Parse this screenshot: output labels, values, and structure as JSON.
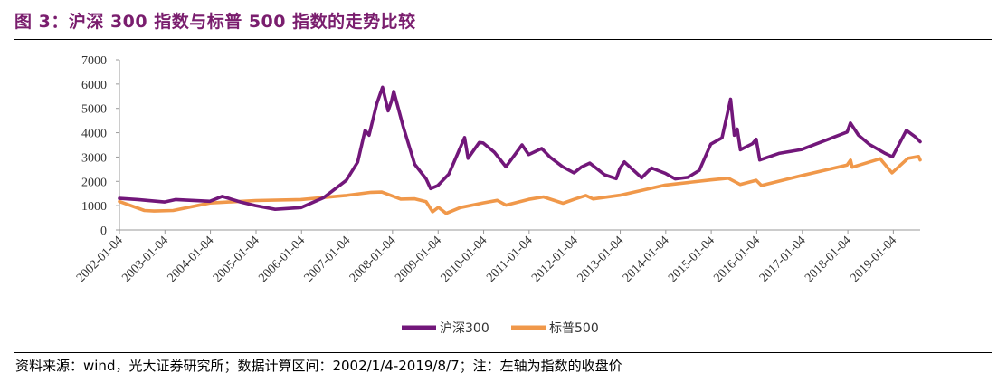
{
  "figure": {
    "title": "图 3：沪深 300 指数与标普 500 指数的走势比较",
    "source": "资料来源：wind，光大证券研究所；数据计算区间：2002/1/4-2019/8/7；注：左轴为指数的收盘价"
  },
  "colors": {
    "hs300": "#72177a",
    "sp500": "#f0984a",
    "axis": "#999999"
  },
  "chart_data": {
    "type": "line",
    "title": "",
    "xlabel": "",
    "ylabel": "",
    "ylim": [
      0,
      7000
    ],
    "yticks": [
      0,
      1000,
      2000,
      3000,
      4000,
      5000,
      6000,
      7000
    ],
    "xrange": [
      "2002-01-04",
      "2019-08-07"
    ],
    "xticks": [
      "2002-01-04",
      "2003-01-04",
      "2004-01-04",
      "2005-01-04",
      "2006-01-04",
      "2007-01-04",
      "2008-01-04",
      "2009-01-04",
      "2010-01-04",
      "2011-01-04",
      "2012-01-04",
      "2013-01-04",
      "2014-01-04",
      "2015-01-04",
      "2016-01-04",
      "2017-01-04",
      "2018-01-04",
      "2019-01-04"
    ],
    "grid": false,
    "legend_position": "bottom",
    "series": [
      {
        "name": "沪深300",
        "color": "#72177a",
        "x": [
          "2002-01-04",
          "2002-06-01",
          "2002-12-31",
          "2003-04-01",
          "2003-12-31",
          "2004-04-07",
          "2004-09-01",
          "2004-12-31",
          "2005-06-06",
          "2005-12-30",
          "2006-06-30",
          "2006-12-29",
          "2007-03-30",
          "2007-05-29",
          "2007-06-30",
          "2007-08-31",
          "2007-10-16",
          "2007-11-30",
          "2007-12-28",
          "2008-01-14",
          "2008-03-31",
          "2008-06-30",
          "2008-09-30",
          "2008-11-04",
          "2008-12-31",
          "2009-03-31",
          "2009-08-04",
          "2009-09-01",
          "2009-11-30",
          "2009-12-31",
          "2010-03-31",
          "2010-07-02",
          "2010-11-08",
          "2010-12-31",
          "2011-04-15",
          "2011-06-20",
          "2011-09-30",
          "2011-12-30",
          "2012-03-01",
          "2012-05-04",
          "2012-08-31",
          "2012-12-03",
          "2012-12-31",
          "2013-02-06",
          "2013-06-25",
          "2013-09-12",
          "2013-12-31",
          "2014-03-20",
          "2014-06-30",
          "2014-09-30",
          "2014-12-31",
          "2015-03-31",
          "2015-06-08",
          "2015-07-08",
          "2015-07-31",
          "2015-08-26",
          "2015-11-30",
          "2015-12-31",
          "2016-01-28",
          "2016-06-30",
          "2016-12-30",
          "2017-06-30",
          "2017-12-29",
          "2018-01-24",
          "2018-03-30",
          "2018-06-29",
          "2018-10-31",
          "2018-12-28",
          "2019-04-19",
          "2019-06-28",
          "2019-08-07"
        ],
        "values": [
          1300,
          1250,
          1150,
          1250,
          1180,
          1380,
          1150,
          1000,
          850,
          920,
          1330,
          2040,
          2790,
          4100,
          3900,
          5200,
          5870,
          4900,
          5330,
          5700,
          4230,
          2700,
          2100,
          1700,
          1820,
          2300,
          3800,
          2950,
          3600,
          3580,
          3200,
          2600,
          3500,
          3100,
          3350,
          3000,
          2600,
          2350,
          2600,
          2750,
          2270,
          2110,
          2520,
          2800,
          2150,
          2550,
          2330,
          2100,
          2165,
          2450,
          3530,
          3790,
          5380,
          3900,
          4150,
          3300,
          3550,
          3730,
          2880,
          3150,
          3310,
          3670,
          4030,
          4400,
          3900,
          3510,
          3150,
          3010,
          4100,
          3830,
          3630
        ]
      },
      {
        "name": "标普500",
        "color": "#f0984a",
        "x": [
          "2002-01-04",
          "2002-07-23",
          "2002-10-09",
          "2003-03-11",
          "2003-12-31",
          "2004-12-31",
          "2005-12-30",
          "2006-12-29",
          "2007-07-16",
          "2007-10-09",
          "2008-03-10",
          "2008-06-30",
          "2008-09-30",
          "2008-11-20",
          "2009-01-06",
          "2009-03-09",
          "2009-06-30",
          "2009-12-31",
          "2010-04-23",
          "2010-07-02",
          "2010-12-31",
          "2011-04-29",
          "2011-10-03",
          "2011-12-30",
          "2012-04-02",
          "2012-06-01",
          "2012-12-31",
          "2013-12-31",
          "2014-12-31",
          "2015-05-21",
          "2015-08-25",
          "2015-12-31",
          "2016-02-11",
          "2016-12-30",
          "2017-12-29",
          "2018-01-26",
          "2018-02-08",
          "2018-09-20",
          "2018-12-24",
          "2019-04-30",
          "2019-07-26",
          "2019-08-07"
        ],
        "values": [
          1170,
          800,
          780,
          800,
          1110,
          1210,
          1250,
          1420,
          1550,
          1560,
          1270,
          1280,
          1160,
          750,
          930,
          680,
          920,
          1115,
          1217,
          1022,
          1258,
          1360,
          1100,
          1258,
          1419,
          1278,
          1426,
          1848,
          2059,
          2130,
          1868,
          2044,
          1829,
          2239,
          2674,
          2873,
          2581,
          2930,
          2351,
          2946,
          3025,
          2883
        ]
      }
    ]
  }
}
